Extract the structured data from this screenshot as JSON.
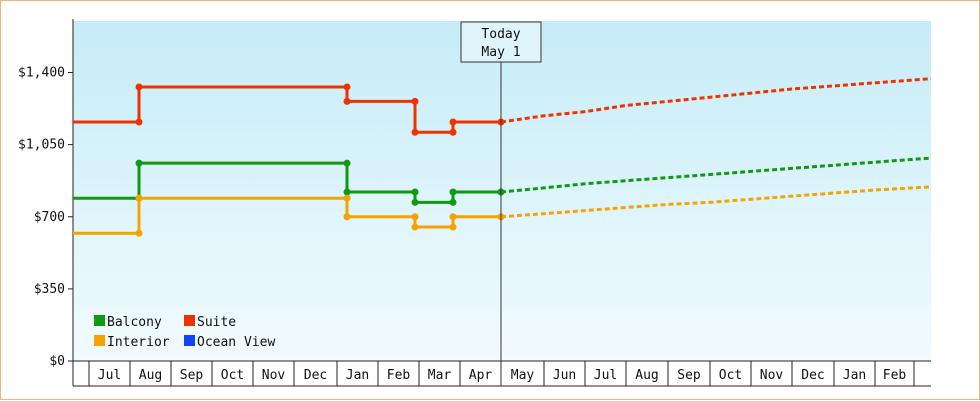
{
  "chart_data": {
    "type": "line",
    "title": "",
    "xlabel": "",
    "ylabel": "",
    "ylim": [
      0,
      1650
    ],
    "y_ticks": [
      {
        "value": 0,
        "label": "$0"
      },
      {
        "value": 350,
        "label": "$350"
      },
      {
        "value": 700,
        "label": "$700"
      },
      {
        "value": 1050,
        "label": "$1,050"
      },
      {
        "value": 1400,
        "label": "$1,400"
      }
    ],
    "month_labels": [
      "Jul",
      "Aug",
      "Sep",
      "Oct",
      "Nov",
      "Dec",
      "Jan",
      "Feb",
      "Mar",
      "Apr",
      "May",
      "Jun",
      "Jul",
      "Aug",
      "Sep",
      "Oct",
      "Nov",
      "Dec",
      "Jan",
      "Feb"
    ],
    "today": {
      "line1": "Today",
      "line2": "May 1"
    },
    "legend": [
      {
        "name": "Balcony",
        "color": "#119911"
      },
      {
        "name": "Suite",
        "color": "#ee3300"
      },
      {
        "name": "Interior",
        "color": "#f5a300"
      },
      {
        "name": "Ocean View",
        "color": "#1144ee"
      }
    ],
    "series": [
      {
        "name": "Suite",
        "color": "#ee3300",
        "historical": [
          [
            "Jun",
            1160
          ],
          [
            "Aug",
            1160
          ],
          [
            "Aug",
            1330
          ],
          [
            "Jan",
            1330
          ],
          [
            "Jan",
            1260
          ],
          [
            "Feb",
            1260
          ],
          [
            "Feb",
            1110
          ],
          [
            "Mar",
            1110
          ],
          [
            "Mar",
            1160
          ],
          [
            "May",
            1160
          ]
        ],
        "forecast": [
          [
            "May",
            1160
          ],
          [
            "Jun",
            1190
          ],
          [
            "Jul",
            1210
          ],
          [
            "Aug",
            1240
          ],
          [
            "Sep",
            1260
          ],
          [
            "Oct",
            1280
          ],
          [
            "Nov",
            1300
          ],
          [
            "Dec",
            1320
          ],
          [
            "Jan",
            1335
          ],
          [
            "Feb",
            1350
          ],
          [
            "Mar",
            1370
          ]
        ]
      },
      {
        "name": "Balcony",
        "color": "#119911",
        "historical": [
          [
            "Jun",
            790
          ],
          [
            "Aug",
            790
          ],
          [
            "Aug",
            960
          ],
          [
            "Jan",
            960
          ],
          [
            "Jan",
            820
          ],
          [
            "Feb",
            820
          ],
          [
            "Feb",
            770
          ],
          [
            "Mar",
            770
          ],
          [
            "Mar",
            820
          ],
          [
            "May",
            820
          ]
        ],
        "forecast": [
          [
            "May",
            820
          ],
          [
            "Jun",
            840
          ],
          [
            "Jul",
            860
          ],
          [
            "Aug",
            875
          ],
          [
            "Sep",
            890
          ],
          [
            "Oct",
            905
          ],
          [
            "Nov",
            920
          ],
          [
            "Dec",
            935
          ],
          [
            "Jan",
            950
          ],
          [
            "Feb",
            965
          ],
          [
            "Mar",
            985
          ]
        ]
      },
      {
        "name": "Interior",
        "color": "#f5a300",
        "historical": [
          [
            "Jun",
            620
          ],
          [
            "Aug",
            620
          ],
          [
            "Aug",
            790
          ],
          [
            "Jan",
            790
          ],
          [
            "Jan",
            700
          ],
          [
            "Feb",
            700
          ],
          [
            "Feb",
            650
          ],
          [
            "Mar",
            650
          ],
          [
            "Mar",
            700
          ],
          [
            "May",
            700
          ]
        ],
        "forecast": [
          [
            "May",
            700
          ],
          [
            "Jun",
            715
          ],
          [
            "Jul",
            730
          ],
          [
            "Aug",
            745
          ],
          [
            "Sep",
            760
          ],
          [
            "Oct",
            770
          ],
          [
            "Nov",
            785
          ],
          [
            "Dec",
            800
          ],
          [
            "Jan",
            815
          ],
          [
            "Feb",
            830
          ],
          [
            "Mar",
            845
          ]
        ]
      }
    ]
  }
}
